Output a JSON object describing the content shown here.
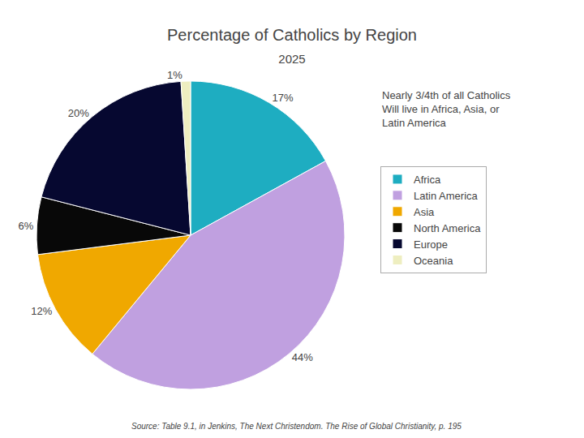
{
  "chart_data": {
    "type": "pie",
    "title": "Percentage of Catholics by Region",
    "subtitle": "2025",
    "annotations": [
      "Nearly 3/4th of all Catholics",
      "Will live in Africa, Asia, or",
      "Latin America"
    ],
    "source": "Source: Table 9.1, in Jenkins, The Next Christendom. The Rise of Global Christianity, p. 195",
    "categories": [
      "Africa",
      "Latin America",
      "Asia",
      "North America",
      "Europe",
      "Oceania"
    ],
    "values": [
      17,
      44,
      12,
      6,
      20,
      1
    ],
    "value_labels": [
      "17%",
      "44%",
      "12%",
      "6%",
      "20%",
      "1%"
    ],
    "colors": [
      "#1EADC1",
      "#C0A0E0",
      "#F0A800",
      "#080808",
      "#060830",
      "#EEEEC0"
    ],
    "data_labels": true,
    "legend": "right"
  }
}
